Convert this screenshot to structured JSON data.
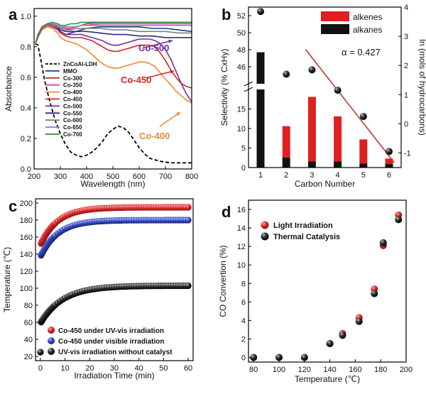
{
  "chart_data": [
    {
      "panel": "a",
      "type": "line",
      "xlabel": "Wavelength (nm)",
      "ylabel": "Absorbance",
      "xlim": [
        200,
        800
      ],
      "ylim": [
        0,
        1.05
      ],
      "xticks": [
        200,
        300,
        400,
        500,
        600,
        700,
        800
      ],
      "yticks": [
        0.0,
        0.2,
        0.4,
        0.6,
        0.8,
        1.0
      ],
      "legend_position": "left-center",
      "annotations": [
        {
          "text": "Co-500",
          "color": "#7030a0",
          "x": 690,
          "y": 0.73
        },
        {
          "text": "Co-450",
          "color": "#dd2222",
          "x": 625,
          "y": 0.6
        },
        {
          "text": "Co-400",
          "color": "#ef8a35",
          "x": 740,
          "y": 0.33
        }
      ],
      "series": [
        {
          "name": "ZnCoAl-LDH",
          "color": "#000000",
          "dash": true,
          "x": [
            205,
            215,
            225,
            240,
            260,
            280,
            300,
            320,
            340,
            360,
            380,
            400,
            420,
            440,
            460,
            480,
            500,
            520,
            540,
            560,
            580,
            600,
            620,
            640,
            660,
            680,
            700,
            720,
            740,
            760,
            780,
            800
          ],
          "values": [
            0.82,
            0.81,
            0.72,
            0.58,
            0.44,
            0.32,
            0.23,
            0.16,
            0.11,
            0.09,
            0.08,
            0.09,
            0.11,
            0.14,
            0.18,
            0.23,
            0.26,
            0.28,
            0.27,
            0.24,
            0.19,
            0.14,
            0.1,
            0.07,
            0.06,
            0.05,
            0.045,
            0.04,
            0.04,
            0.04,
            0.04,
            0.04
          ]
        },
        {
          "name": "MMO",
          "color": "#1f3a8a",
          "x": [
            205,
            215,
            230,
            250,
            270,
            290,
            300,
            320,
            340,
            360,
            380,
            400,
            450,
            500,
            550,
            600,
            650,
            700,
            750,
            800
          ],
          "values": [
            0.82,
            0.88,
            0.93,
            0.95,
            0.94,
            0.92,
            0.9,
            0.88,
            0.89,
            0.9,
            0.91,
            0.92,
            0.93,
            0.93,
            0.93,
            0.93,
            0.92,
            0.92,
            0.91,
            0.9
          ]
        },
        {
          "name": "Co-300",
          "color": "#c0392b",
          "x": [
            205,
            215,
            230,
            250,
            270,
            290,
            300,
            320,
            340,
            360,
            380,
            400,
            450,
            500,
            550,
            600,
            650,
            700,
            750,
            800
          ],
          "values": [
            0.82,
            0.88,
            0.93,
            0.95,
            0.95,
            0.93,
            0.92,
            0.91,
            0.92,
            0.93,
            0.94,
            0.95,
            0.96,
            0.96,
            0.96,
            0.96,
            0.96,
            0.96,
            0.96,
            0.96
          ]
        },
        {
          "name": "Co-350",
          "color": "#e040a0",
          "x": [
            205,
            215,
            230,
            250,
            270,
            290,
            300,
            320,
            340,
            360,
            380,
            400,
            450,
            500,
            550,
            600,
            650,
            700,
            750,
            800
          ],
          "values": [
            0.82,
            0.88,
            0.93,
            0.95,
            0.95,
            0.94,
            0.93,
            0.92,
            0.92,
            0.93,
            0.94,
            0.94,
            0.95,
            0.95,
            0.95,
            0.95,
            0.95,
            0.95,
            0.95,
            0.95
          ]
        },
        {
          "name": "Co-400",
          "color": "#ef8a35",
          "x": [
            205,
            215,
            230,
            250,
            270,
            290,
            300,
            320,
            340,
            360,
            380,
            400,
            420,
            440,
            460,
            480,
            500,
            520,
            540,
            560,
            580,
            600,
            620,
            640,
            660,
            680,
            700,
            720,
            740,
            760,
            780,
            800
          ],
          "values": [
            0.82,
            0.86,
            0.91,
            0.93,
            0.92,
            0.89,
            0.86,
            0.84,
            0.83,
            0.82,
            0.8,
            0.78,
            0.75,
            0.72,
            0.69,
            0.67,
            0.66,
            0.66,
            0.67,
            0.68,
            0.69,
            0.7,
            0.7,
            0.69,
            0.67,
            0.63,
            0.59,
            0.55,
            0.51,
            0.48,
            0.45,
            0.43
          ]
        },
        {
          "name": "Co-450",
          "color": "#dd2222",
          "x": [
            205,
            215,
            230,
            250,
            270,
            290,
            300,
            320,
            340,
            360,
            380,
            400,
            420,
            440,
            460,
            480,
            500,
            520,
            540,
            560,
            580,
            600,
            620,
            640,
            660,
            680,
            700,
            720,
            740,
            760,
            780,
            800
          ],
          "values": [
            0.82,
            0.87,
            0.92,
            0.94,
            0.93,
            0.91,
            0.89,
            0.87,
            0.86,
            0.86,
            0.86,
            0.85,
            0.84,
            0.82,
            0.8,
            0.78,
            0.77,
            0.77,
            0.78,
            0.79,
            0.8,
            0.81,
            0.81,
            0.81,
            0.8,
            0.76,
            0.71,
            0.65,
            0.6,
            0.56,
            0.54,
            0.53
          ]
        },
        {
          "name": "Co-500",
          "color": "#7030a0",
          "x": [
            205,
            215,
            230,
            250,
            270,
            290,
            300,
            320,
            340,
            360,
            380,
            400,
            420,
            440,
            460,
            480,
            500,
            520,
            540,
            560,
            580,
            600,
            620,
            640,
            660,
            680,
            700,
            720,
            740,
            760,
            780,
            800
          ],
          "values": [
            0.82,
            0.87,
            0.92,
            0.94,
            0.94,
            0.92,
            0.9,
            0.88,
            0.88,
            0.88,
            0.88,
            0.87,
            0.86,
            0.85,
            0.84,
            0.82,
            0.81,
            0.81,
            0.82,
            0.83,
            0.84,
            0.85,
            0.85,
            0.85,
            0.84,
            0.82,
            0.78,
            0.72,
            0.64,
            0.56,
            0.49,
            0.44
          ]
        },
        {
          "name": "Co-550",
          "color": "#2c2f7a",
          "x": [
            205,
            215,
            230,
            250,
            270,
            290,
            300,
            320,
            340,
            360,
            380,
            400,
            450,
            500,
            550,
            600,
            650,
            700,
            750,
            800
          ],
          "values": [
            0.82,
            0.87,
            0.92,
            0.94,
            0.94,
            0.93,
            0.91,
            0.9,
            0.9,
            0.9,
            0.9,
            0.9,
            0.89,
            0.88,
            0.88,
            0.87,
            0.87,
            0.86,
            0.86,
            0.86
          ]
        },
        {
          "name": "Co-600",
          "color": "#7f7f7f",
          "x": [
            205,
            215,
            230,
            250,
            270,
            290,
            300,
            320,
            340,
            360,
            380,
            400,
            450,
            500,
            550,
            600,
            650,
            700,
            750,
            800
          ],
          "values": [
            0.82,
            0.87,
            0.92,
            0.94,
            0.94,
            0.93,
            0.92,
            0.91,
            0.91,
            0.92,
            0.92,
            0.92,
            0.92,
            0.91,
            0.91,
            0.9,
            0.9,
            0.9,
            0.89,
            0.89
          ]
        },
        {
          "name": "Co-650",
          "color": "#8e7cc3",
          "x": [
            205,
            215,
            230,
            250,
            270,
            290,
            300,
            320,
            340,
            360,
            380,
            400,
            450,
            500,
            550,
            600,
            650,
            700,
            750,
            800
          ],
          "values": [
            0.82,
            0.87,
            0.92,
            0.95,
            0.95,
            0.94,
            0.93,
            0.93,
            0.93,
            0.93,
            0.94,
            0.94,
            0.94,
            0.94,
            0.94,
            0.94,
            0.94,
            0.94,
            0.94,
            0.94
          ]
        },
        {
          "name": "Co-700",
          "color": "#2e8b3e",
          "x": [
            205,
            215,
            230,
            250,
            270,
            290,
            300,
            320,
            340,
            360,
            380,
            400,
            450,
            500,
            550,
            600,
            650,
            700,
            750,
            800
          ],
          "values": [
            0.82,
            0.87,
            0.92,
            0.95,
            0.96,
            0.95,
            0.94,
            0.94,
            0.95,
            0.95,
            0.96,
            0.96,
            0.96,
            0.96,
            0.96,
            0.96,
            0.96,
            0.96,
            0.96,
            0.96
          ]
        }
      ]
    },
    {
      "panel": "b",
      "type": "bar",
      "xlabel": "Carbon Number",
      "ylabel_left": "Selectivity (% CxHy)",
      "ylabel_right": "ln (mols of hydrocarbons)",
      "categories": [
        1,
        2,
        3,
        4,
        5,
        6
      ],
      "ylim_left_lower": [
        0,
        20
      ],
      "ylim_left_upper": [
        44,
        53
      ],
      "ylim_right": [
        -1.5,
        4
      ],
      "yticks_left_lower": [
        0,
        5,
        10,
        15
      ],
      "yticks_left_upper": [
        46,
        48,
        50,
        52
      ],
      "yticks_right": [
        -1,
        0,
        1,
        2,
        3,
        4
      ],
      "legend_position": "top-right",
      "series": [
        {
          "name": "alkenes",
          "color": "#e02020",
          "values": [
            0,
            8.0,
            16.5,
            11.5,
            6.2,
            1.4
          ]
        },
        {
          "name": "alkanes",
          "color": "#111111",
          "values": [
            47.7,
            2.6,
            1.6,
            1.6,
            1.0,
            0.9
          ]
        }
      ],
      "scatter": {
        "x": [
          1,
          2,
          3,
          4,
          5,
          6
        ],
        "values": [
          3.85,
          1.7,
          1.85,
          1.15,
          0.25,
          -0.95
        ]
      },
      "fit_line": {
        "x": [
          2.75,
          6.2
        ],
        "values": [
          2.55,
          -1.33
        ],
        "color": "#c0392b"
      },
      "annotation": "α = 0.427"
    },
    {
      "panel": "c",
      "type": "scatter",
      "xlabel": "Irradiation Time (min)",
      "ylabel": "Temperature (℃)",
      "xlim": [
        -2,
        62
      ],
      "ylim": [
        15,
        205
      ],
      "xticks": [
        0,
        10,
        20,
        30,
        40,
        50,
        60
      ],
      "yticks": [
        20,
        40,
        60,
        80,
        100,
        120,
        140,
        160,
        180,
        200
      ],
      "legend_position": "bottom-left",
      "series": [
        {
          "name": "Co-450 under UV-vis irradiation",
          "color": "#e53030",
          "model": [
            25,
            195,
            126,
            7
          ]
        },
        {
          "name": "Co-450 under visible irradiation",
          "color": "#3b4fc4",
          "model": [
            25,
            180,
            112,
            7
          ]
        },
        {
          "name": "UV-vis irradiation without catalyst",
          "color": "#1a1a1a",
          "model": [
            25,
            103,
            34,
            9
          ]
        }
      ]
    },
    {
      "panel": "d",
      "type": "scatter",
      "xlabel": "Temperature (℃)",
      "ylabel": "CO Convertion (%)",
      "xlim": [
        76,
        200
      ],
      "ylim": [
        -0.5,
        17
      ],
      "xticks": [
        80,
        100,
        120,
        140,
        160,
        180,
        200
      ],
      "yticks": [
        0,
        2,
        4,
        6,
        8,
        10,
        12,
        14,
        16
      ],
      "legend_position": "top-left",
      "series": [
        {
          "name": "Light Irradiation",
          "color": "#e53030",
          "x": [
            80,
            100,
            120,
            140,
            150,
            163,
            175,
            182,
            194
          ],
          "values": [
            0,
            0,
            0,
            1.5,
            2.6,
            4.3,
            7.4,
            12.1,
            15.4
          ]
        },
        {
          "name": "Thermal Catalysis",
          "color": "#1a1a1a",
          "x": [
            80,
            100,
            120,
            140,
            150,
            163,
            175,
            182,
            194
          ],
          "values": [
            0,
            0,
            0,
            1.5,
            2.4,
            3.9,
            6.9,
            12.4,
            14.9
          ]
        }
      ]
    }
  ],
  "panel_labels": [
    "a",
    "b",
    "c",
    "d"
  ]
}
